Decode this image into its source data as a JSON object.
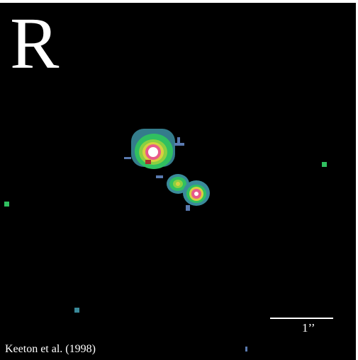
{
  "image": {
    "band_label": "R",
    "credit": "Keeton et al. (1998)",
    "scale_bar_label": "1’’",
    "colors": {
      "background": "#000000",
      "frame": "#ffffff",
      "text": "#ffffff",
      "core": "#ffffff",
      "ring_inner": "#e85a8a",
      "ring_mid": "#d8d040",
      "ring_outer": "#30c060",
      "halo": "#3a8a9a",
      "fringe": "#5a7ab0"
    }
  }
}
